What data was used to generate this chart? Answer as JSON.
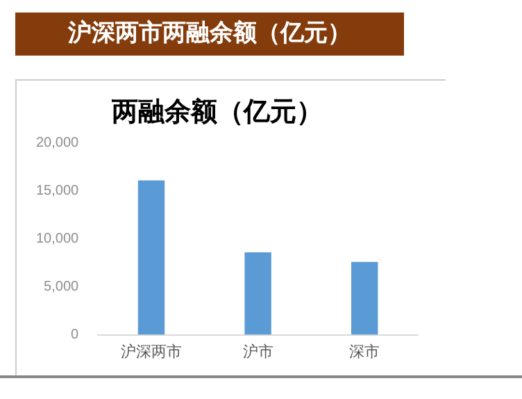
{
  "chart_data": {
    "type": "bar",
    "title": "沪深两市两融余额（亿元）",
    "subtitle": "两融余额（亿元）",
    "categories": [
      "沪深两市",
      "沪市",
      "深市"
    ],
    "values": [
      16100,
      8600,
      7600
    ],
    "color": "#5b9bd5",
    "ylim": [
      0,
      20000
    ],
    "yticks": [
      0,
      {
        "value": 5000,
        "label": "5,000"
      },
      {
        "value": 10000,
        "label": "10,000"
      },
      {
        "value": 15000,
        "label": "15,000"
      },
      {
        "value": 20000,
        "label": "20,000"
      }
    ],
    "grid": false,
    "legend": false
  }
}
